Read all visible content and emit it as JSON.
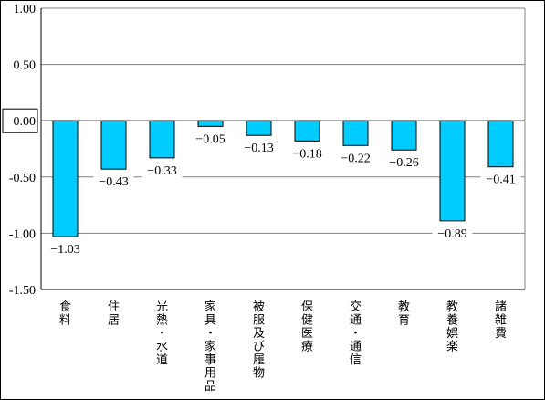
{
  "chart_data": {
    "type": "bar",
    "title": "",
    "xlabel": "",
    "ylabel": "",
    "categories": [
      "食料",
      "住居",
      "光熱・水道",
      "家具・家事用品",
      "被服及び履物",
      "保健医療",
      "交通・通信",
      "教育",
      "教養娯楽",
      "諸雑費"
    ],
    "values": [
      -1.03,
      -0.43,
      -0.33,
      -0.05,
      -0.13,
      -0.18,
      -0.22,
      -0.26,
      -0.89,
      -0.41
    ],
    "value_labels": [
      "−1.03",
      "−0.43",
      "−0.33",
      "−0.05",
      "−0.13",
      "−0.18",
      "−0.22",
      "−0.26",
      "−0.89",
      "−0.41"
    ],
    "ylim": [
      -1.5,
      1.0
    ],
    "yticks": [
      1.0,
      0.5,
      0.0,
      -0.5,
      -1.0,
      -1.5
    ],
    "ytick_labels": [
      "1.00",
      "0.50",
      "0.00",
      "-0.50",
      "-1.00",
      "-1.50"
    ],
    "grid": true,
    "legend": "none",
    "bar_color": "#00ccff"
  }
}
